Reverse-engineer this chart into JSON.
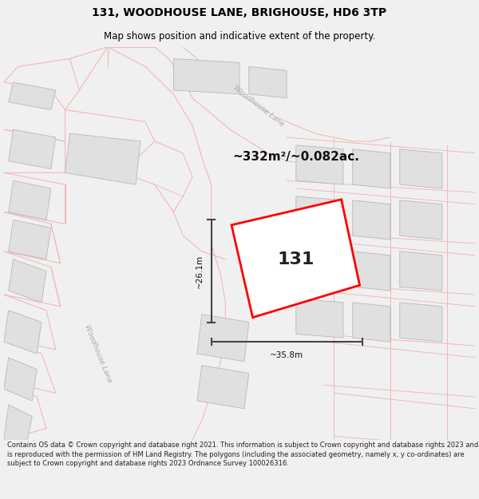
{
  "title_line1": "131, WOODHOUSE LANE, BRIGHOUSE, HD6 3TP",
  "title_line2": "Map shows position and indicative extent of the property.",
  "footer_text": "Contains OS data © Crown copyright and database right 2021. This information is subject to Crown copyright and database rights 2023 and is reproduced with the permission of HM Land Registry. The polygons (including the associated geometry, namely x, y co-ordinates) are subject to Crown copyright and database rights 2023 Ordnance Survey 100026316.",
  "area_label": "~332m²/~0.082ac.",
  "property_number": "131",
  "dim_width": "~35.8m",
  "dim_height": "~26.1m",
  "bg_color": "#f0f0f0",
  "map_bg": "#ffffff",
  "plot_line_color": "#f0b8b8",
  "building_fill": "#e0e0e0",
  "building_edge": "#b8b8b8",
  "road_label_color": "#aaaaaa",
  "property_color": "#ff0000",
  "dim_color": "#444444",
  "title_color": "#000000",
  "footer_color": "#222222",
  "title_fontsize": 10,
  "subtitle_fontsize": 8.5,
  "footer_fontsize": 6.0
}
